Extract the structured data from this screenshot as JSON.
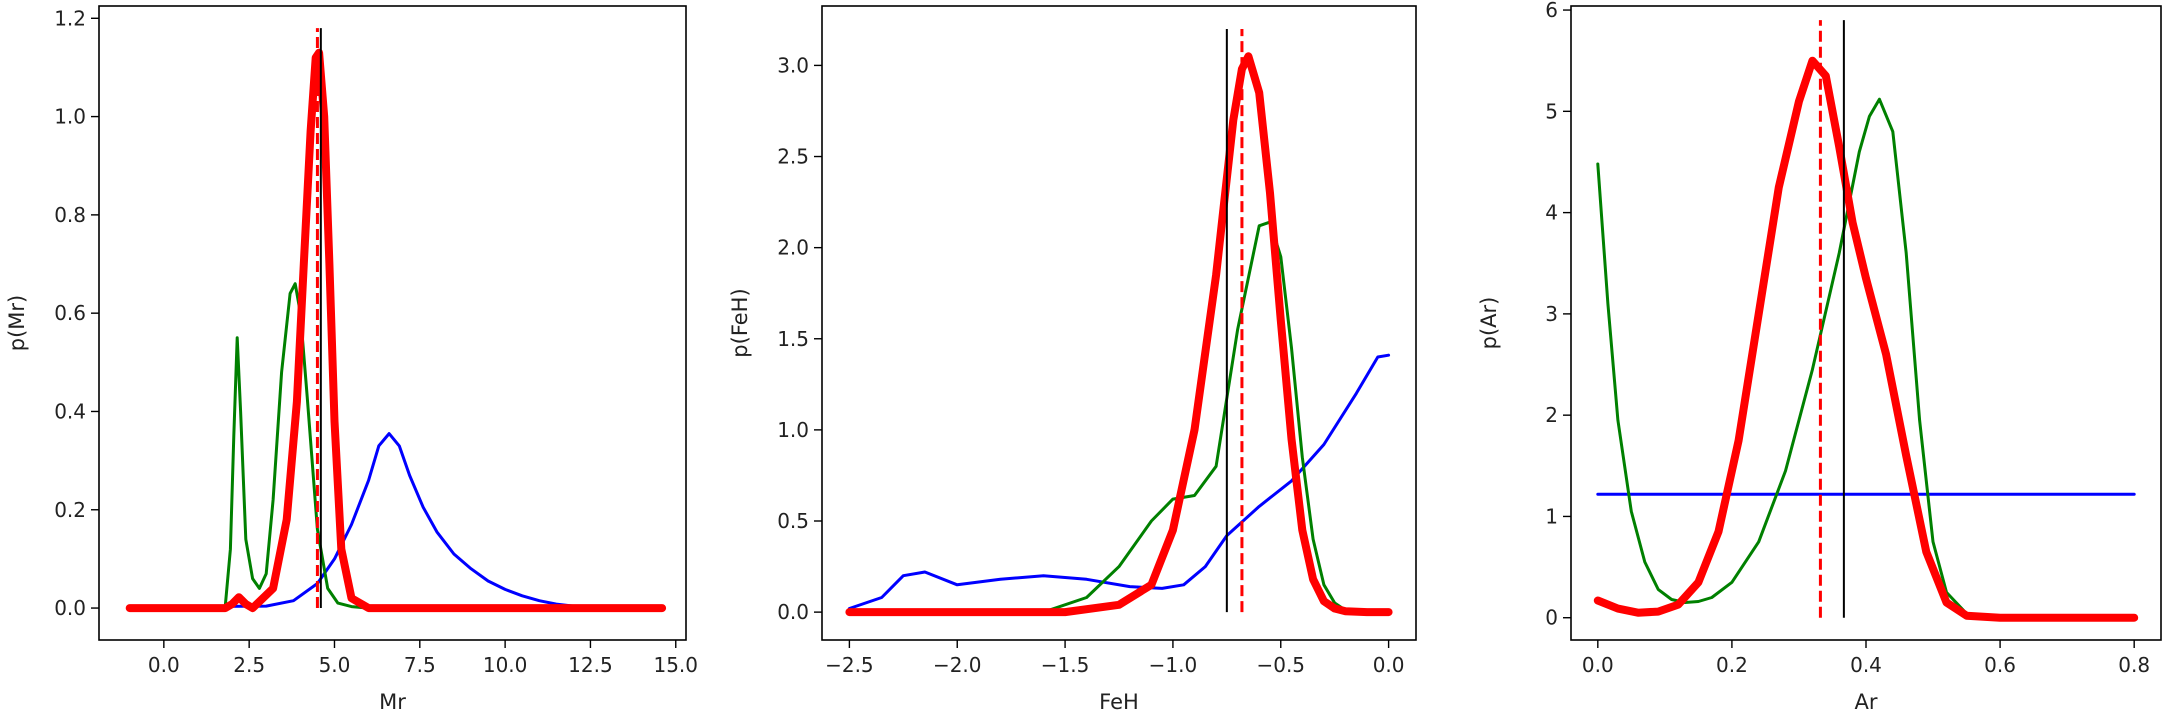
{
  "chart_data": [
    {
      "type": "line",
      "xlabel": "Mr",
      "ylabel": "p(Mr)",
      "xlim": [
        -1.9,
        15.3
      ],
      "ylim": [
        -0.065,
        1.225
      ],
      "xticks": [
        0.0,
        2.5,
        5.0,
        7.5,
        10.0,
        12.5,
        15.0
      ],
      "xtick_labels": [
        "0.0",
        "2.5",
        "5.0",
        "7.5",
        "10.0",
        "12.5",
        "15.0"
      ],
      "yticks": [
        0.0,
        0.2,
        0.4,
        0.6,
        0.8,
        1.0,
        1.2
      ],
      "ytick_labels": [
        "0.0",
        "0.2",
        "0.4",
        "0.6",
        "0.8",
        "1.0",
        "1.2"
      ],
      "vlines": [
        {
          "x": 4.6,
          "ymin": 0.0,
          "ymax": 1.18,
          "color": "#000000",
          "style": "solid"
        },
        {
          "x": 4.5,
          "ymin": 0.0,
          "ymax": 1.18,
          "color": "#ff0000",
          "style": "dashed"
        }
      ],
      "series": [
        {
          "color": "#0000ff",
          "width": 3,
          "x": [
            -1.0,
            1.0,
            3.0,
            3.8,
            4.5,
            5.0,
            5.5,
            6.0,
            6.3,
            6.6,
            6.9,
            7.2,
            7.6,
            8.0,
            8.5,
            9.0,
            9.5,
            10.0,
            10.5,
            11.0,
            11.5,
            12.0,
            12.5,
            13.0,
            14.6
          ],
          "y": [
            0.003,
            0.003,
            0.004,
            0.015,
            0.05,
            0.1,
            0.17,
            0.26,
            0.33,
            0.355,
            0.33,
            0.27,
            0.205,
            0.155,
            0.11,
            0.08,
            0.055,
            0.038,
            0.025,
            0.015,
            0.008,
            0.004,
            0.002,
            0.001,
            0.001
          ]
        },
        {
          "color": "#008000",
          "width": 3,
          "x": [
            -1.0,
            1.5,
            1.8,
            1.95,
            2.05,
            2.15,
            2.25,
            2.4,
            2.6,
            2.8,
            3.0,
            3.2,
            3.45,
            3.7,
            3.85,
            4.0,
            4.2,
            4.5,
            4.8,
            5.1,
            5.5,
            6.0,
            14.6
          ],
          "y": [
            0.0,
            0.0,
            0.005,
            0.12,
            0.35,
            0.55,
            0.4,
            0.14,
            0.06,
            0.04,
            0.07,
            0.22,
            0.48,
            0.64,
            0.66,
            0.6,
            0.43,
            0.16,
            0.04,
            0.01,
            0.003,
            0.0,
            0.0
          ]
        },
        {
          "color": "#ff0000",
          "width": 8,
          "x": [
            -1.0,
            1.8,
            2.0,
            2.2,
            2.4,
            2.6,
            3.2,
            3.6,
            3.9,
            4.1,
            4.3,
            4.45,
            4.55,
            4.7,
            4.85,
            5.0,
            5.2,
            5.5,
            6.0,
            14.6
          ],
          "y": [
            0.0,
            0.0,
            0.008,
            0.022,
            0.008,
            0.0,
            0.04,
            0.18,
            0.42,
            0.7,
            0.97,
            1.12,
            1.13,
            1.0,
            0.7,
            0.38,
            0.12,
            0.02,
            0.0,
            0.0
          ]
        }
      ]
    },
    {
      "type": "line",
      "xlabel": "FeH",
      "ylabel": "p(FeH)",
      "xlim": [
        -2.627,
        0.127
      ],
      "ylim": [
        -0.153,
        3.326
      ],
      "xticks": [
        -2.5,
        -2.0,
        -1.5,
        -1.0,
        -0.5,
        0.0
      ],
      "xtick_labels": [
        "−2.5",
        "−2.0",
        "−1.5",
        "−1.0",
        "−0.5",
        "0.0"
      ],
      "yticks": [
        0.0,
        0.5,
        1.0,
        1.5,
        2.0,
        2.5,
        3.0
      ],
      "ytick_labels": [
        "0.0",
        "0.5",
        "1.0",
        "1.5",
        "2.0",
        "2.5",
        "3.0"
      ],
      "vlines": [
        {
          "x": -0.75,
          "ymin": 0.0,
          "ymax": 3.2,
          "color": "#000000",
          "style": "solid"
        },
        {
          "x": -0.68,
          "ymin": 0.0,
          "ymax": 3.2,
          "color": "#ff0000",
          "style": "dashed"
        }
      ],
      "series": [
        {
          "color": "#0000ff",
          "width": 3,
          "x": [
            -2.5,
            -2.35,
            -2.25,
            -2.15,
            -2.0,
            -1.8,
            -1.6,
            -1.4,
            -1.2,
            -1.05,
            -0.95,
            -0.85,
            -0.75,
            -0.6,
            -0.45,
            -0.3,
            -0.15,
            -0.05,
            0.0
          ],
          "y": [
            0.02,
            0.08,
            0.2,
            0.22,
            0.15,
            0.18,
            0.2,
            0.18,
            0.14,
            0.13,
            0.15,
            0.25,
            0.42,
            0.58,
            0.72,
            0.92,
            1.2,
            1.4,
            1.41
          ]
        },
        {
          "color": "#008000",
          "width": 3,
          "x": [
            -2.5,
            -1.6,
            -1.4,
            -1.25,
            -1.1,
            -1.0,
            -0.9,
            -0.8,
            -0.7,
            -0.6,
            -0.55,
            -0.5,
            -0.45,
            -0.4,
            -0.35,
            -0.3,
            -0.25,
            -0.2,
            -0.1,
            0.0
          ],
          "y": [
            0.0,
            0.0,
            0.08,
            0.25,
            0.5,
            0.62,
            0.64,
            0.8,
            1.55,
            2.12,
            2.14,
            1.95,
            1.45,
            0.85,
            0.4,
            0.15,
            0.05,
            0.01,
            0.0,
            0.0
          ]
        },
        {
          "color": "#ff0000",
          "width": 8,
          "x": [
            -2.5,
            -1.5,
            -1.25,
            -1.1,
            -1.0,
            -0.9,
            -0.8,
            -0.72,
            -0.68,
            -0.65,
            -0.6,
            -0.55,
            -0.5,
            -0.45,
            -0.4,
            -0.35,
            -0.3,
            -0.25,
            -0.2,
            -0.1,
            0.0
          ],
          "y": [
            0.0,
            0.0,
            0.04,
            0.15,
            0.45,
            1.0,
            1.85,
            2.7,
            2.98,
            3.05,
            2.85,
            2.3,
            1.6,
            0.95,
            0.45,
            0.18,
            0.06,
            0.02,
            0.005,
            0.0,
            0.0
          ]
        }
      ]
    },
    {
      "type": "line",
      "xlabel": "Ar",
      "ylabel": "p(Ar)",
      "xlim": [
        -0.04,
        0.84
      ],
      "ylim": [
        -0.22,
        6.04
      ],
      "xticks": [
        0.0,
        0.2,
        0.4,
        0.6,
        0.8
      ],
      "xtick_labels": [
        "0.0",
        "0.2",
        "0.4",
        "0.6",
        "0.8"
      ],
      "yticks": [
        0,
        1,
        2,
        3,
        4,
        5,
        6
      ],
      "ytick_labels": [
        "0",
        "1",
        "2",
        "3",
        "4",
        "5",
        "6"
      ],
      "vlines": [
        {
          "x": 0.367,
          "ymin": 0.0,
          "ymax": 5.9,
          "color": "#000000",
          "style": "solid"
        },
        {
          "x": 0.332,
          "ymin": 0.0,
          "ymax": 5.9,
          "color": "#ff0000",
          "style": "dashed"
        }
      ],
      "series": [
        {
          "color": "#0000ff",
          "width": 3,
          "x": [
            0.0,
            0.8
          ],
          "y": [
            1.22,
            1.22
          ]
        },
        {
          "color": "#008000",
          "width": 3,
          "x": [
            0.0,
            0.015,
            0.03,
            0.05,
            0.07,
            0.09,
            0.11,
            0.13,
            0.15,
            0.17,
            0.2,
            0.24,
            0.28,
            0.32,
            0.36,
            0.39,
            0.405,
            0.42,
            0.44,
            0.46,
            0.48,
            0.5,
            0.52,
            0.55,
            0.6,
            0.8
          ],
          "y": [
            4.48,
            3.1,
            1.95,
            1.05,
            0.55,
            0.28,
            0.18,
            0.15,
            0.16,
            0.2,
            0.35,
            0.75,
            1.45,
            2.45,
            3.6,
            4.6,
            4.95,
            5.12,
            4.8,
            3.6,
            1.95,
            0.75,
            0.25,
            0.04,
            0.0,
            0.0
          ]
        },
        {
          "color": "#ff0000",
          "width": 8,
          "x": [
            0.0,
            0.03,
            0.06,
            0.09,
            0.12,
            0.15,
            0.18,
            0.21,
            0.24,
            0.27,
            0.3,
            0.32,
            0.34,
            0.36,
            0.38,
            0.4,
            0.43,
            0.46,
            0.49,
            0.52,
            0.55,
            0.6,
            0.8
          ],
          "y": [
            0.17,
            0.09,
            0.05,
            0.06,
            0.13,
            0.35,
            0.85,
            1.75,
            3.0,
            4.25,
            5.1,
            5.5,
            5.35,
            4.65,
            3.9,
            3.35,
            2.6,
            1.6,
            0.65,
            0.15,
            0.02,
            0.0,
            0.0
          ]
        }
      ]
    }
  ]
}
